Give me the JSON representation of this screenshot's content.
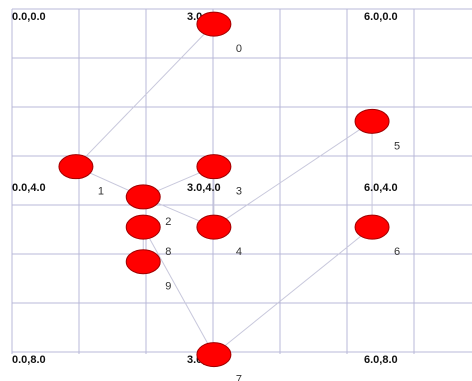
{
  "coordinate_labels": [
    {
      "id": "c00",
      "text": "0.0,0.0"
    },
    {
      "id": "c30",
      "text": "3.0,0.0"
    },
    {
      "id": "c60",
      "text": "6.0,0.0"
    },
    {
      "id": "c04",
      "text": "0.0,4.0"
    },
    {
      "id": "c34",
      "text": "3.0,4.0"
    },
    {
      "id": "c64",
      "text": "6.0,4.0"
    },
    {
      "id": "c08",
      "text": "0.0,8.0"
    },
    {
      "id": "c38",
      "text": "3.0,8.0"
    },
    {
      "id": "c68",
      "text": "6.0,8.0"
    }
  ],
  "nodes": [
    {
      "id": "0",
      "label": "0",
      "x": 3.0,
      "y": 0.35,
      "color": "#ff0000"
    },
    {
      "id": "1",
      "label": "1",
      "x": 0.95,
      "y": 3.65,
      "color": "#ff0000"
    },
    {
      "id": "2",
      "label": "2",
      "x": 1.95,
      "y": 4.35,
      "color": "#ff0000"
    },
    {
      "id": "3",
      "label": "3",
      "x": 3.0,
      "y": 3.65,
      "color": "#ff0000"
    },
    {
      "id": "4",
      "label": "4",
      "x": 3.0,
      "y": 5.05,
      "color": "#ff0000"
    },
    {
      "id": "5",
      "label": "5",
      "x": 5.35,
      "y": 2.6,
      "color": "#ff0000"
    },
    {
      "id": "6",
      "label": "6",
      "x": 5.35,
      "y": 5.05,
      "color": "#ff0000"
    },
    {
      "id": "7",
      "label": "7",
      "x": 3.0,
      "y": 8.0,
      "color": "#ff0000"
    },
    {
      "id": "8",
      "label": "8",
      "x": 1.95,
      "y": 5.05,
      "color": "#ff0000"
    },
    {
      "id": "9",
      "label": "9",
      "x": 1.95,
      "y": 5.85,
      "color": "#ff0000"
    }
  ],
  "edges": [
    [
      "0",
      "1"
    ],
    [
      "1",
      "2"
    ],
    [
      "2",
      "3"
    ],
    [
      "2",
      "4"
    ],
    [
      "3",
      "4"
    ],
    [
      "4",
      "5"
    ],
    [
      "5",
      "6"
    ],
    [
      "6",
      "7"
    ],
    [
      "8",
      "9"
    ],
    [
      "8",
      "7"
    ]
  ]
}
